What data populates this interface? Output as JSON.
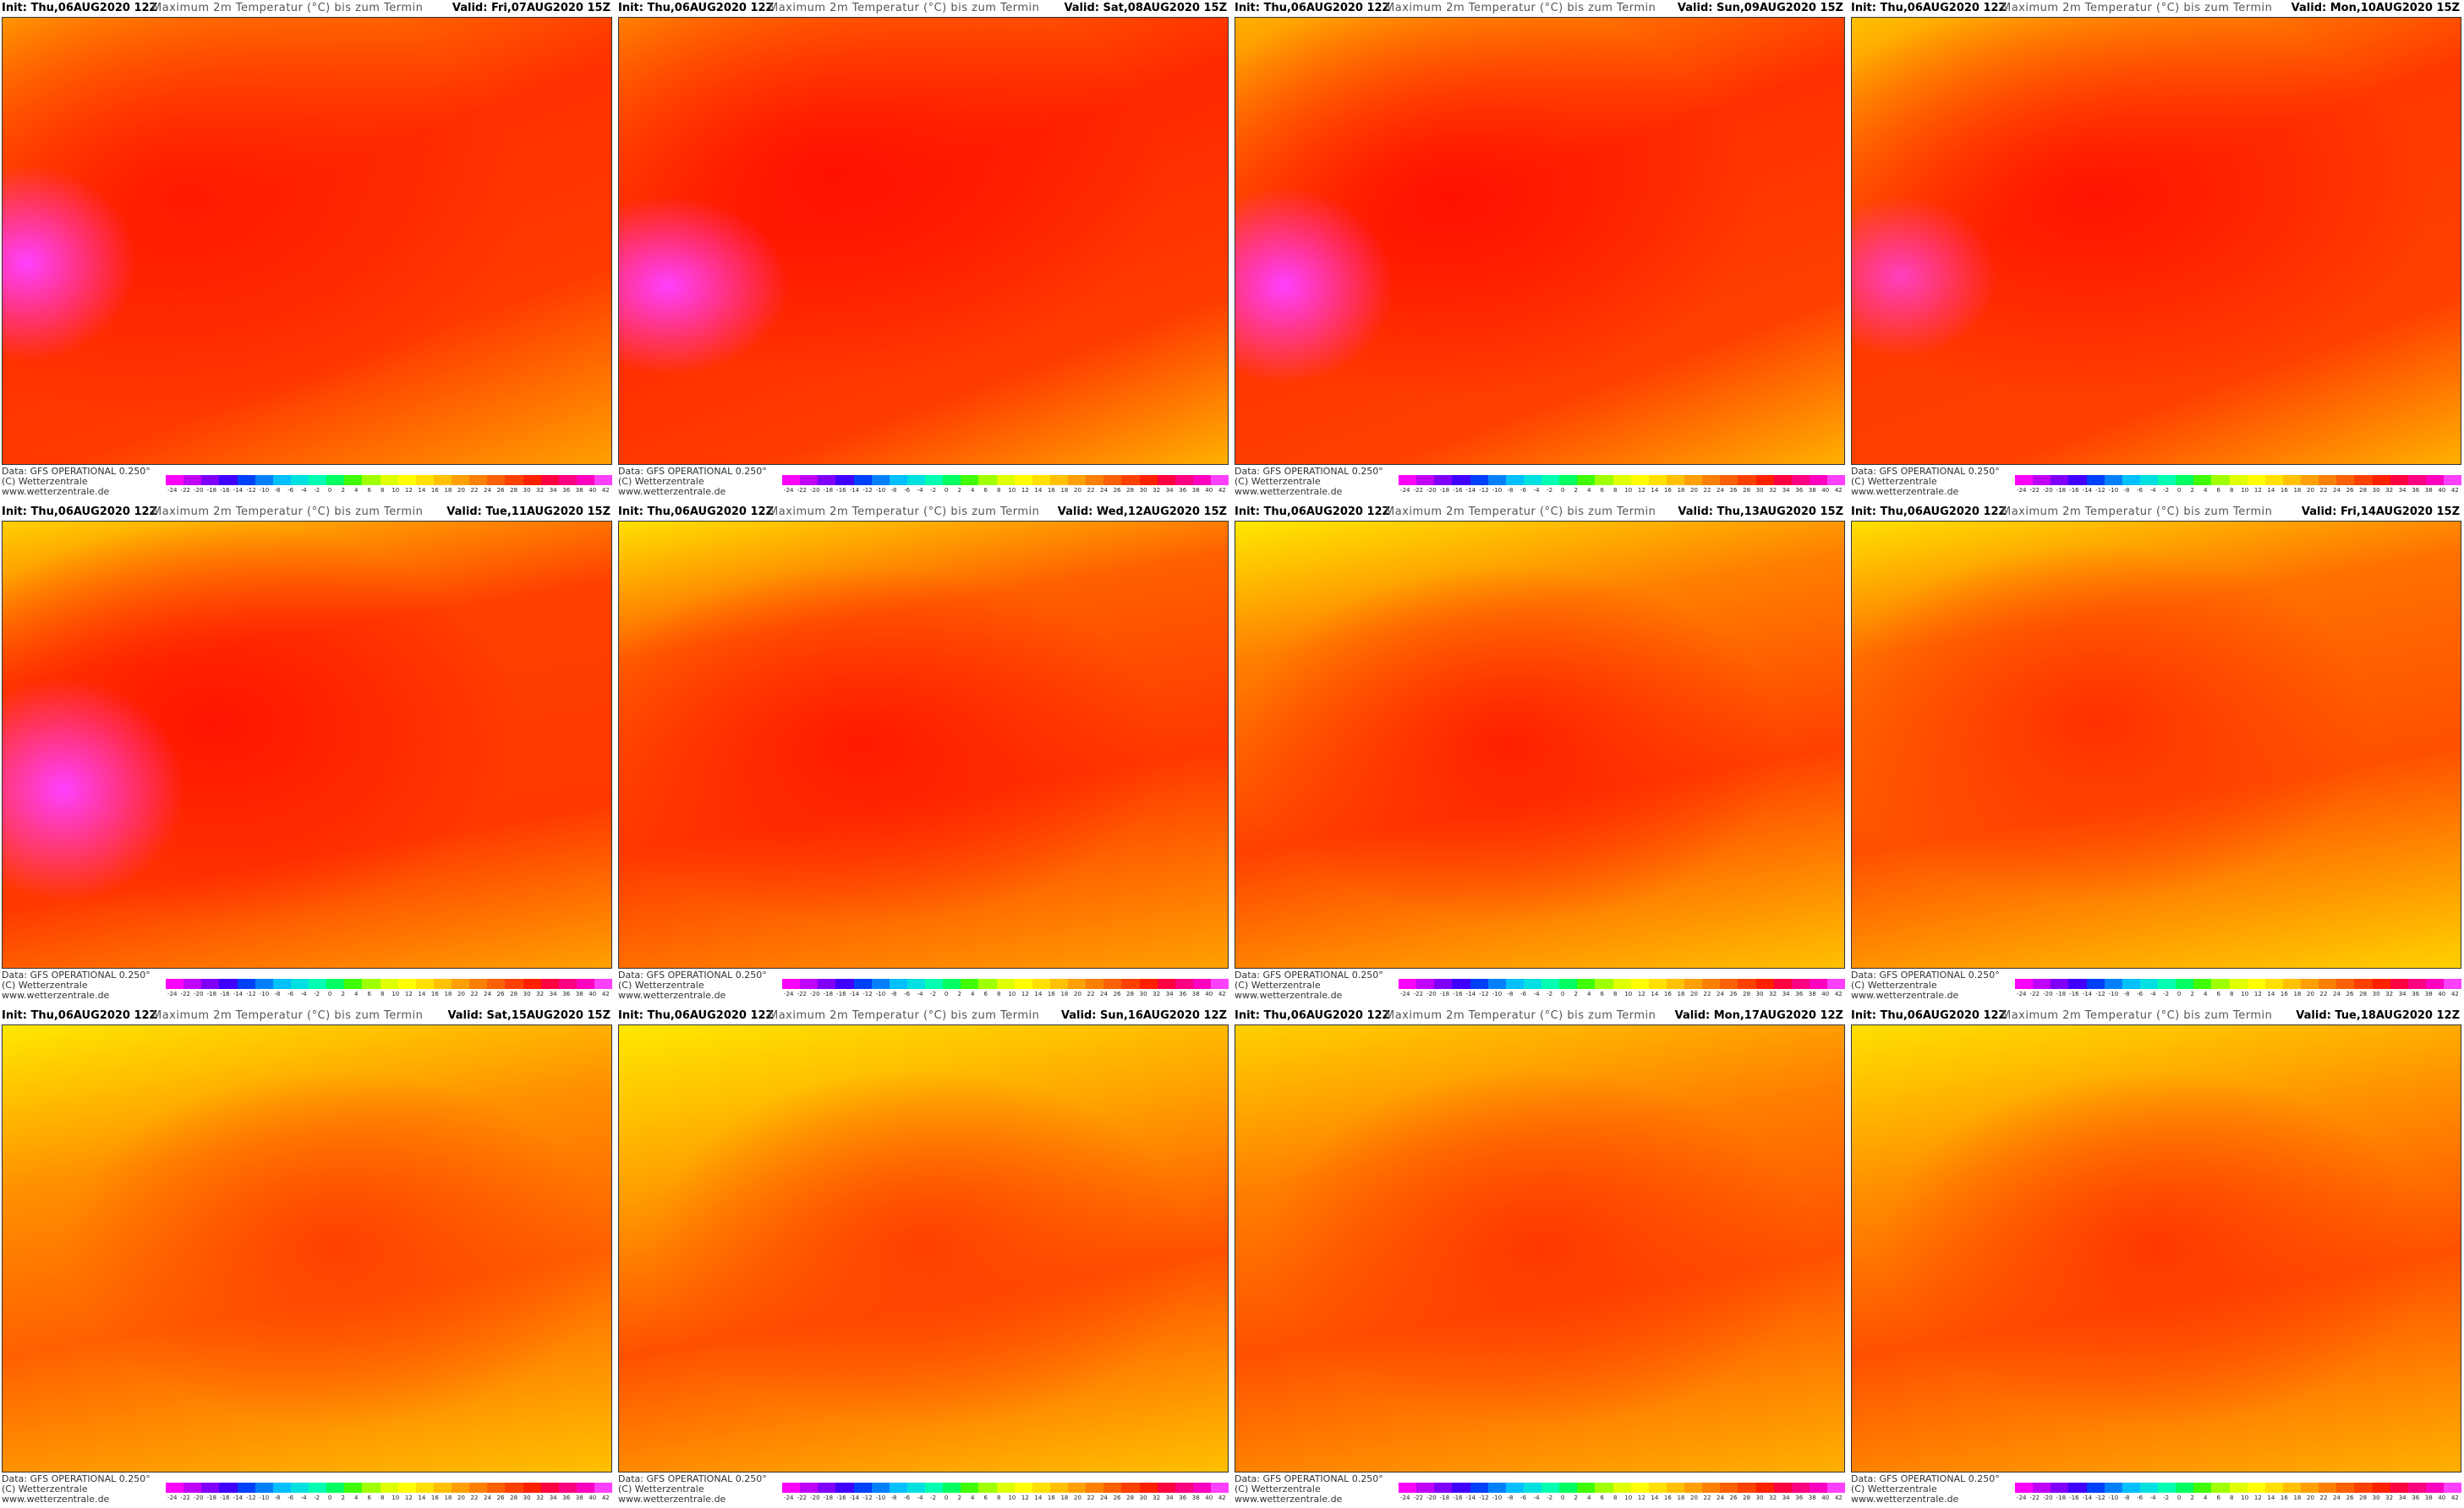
{
  "panels": [
    {
      "init": "Init: Thu,06AUG2020 12Z",
      "title": "Maximum 2m Temperatur (°C) bis zum Termin",
      "valid": "Valid: Fri,07AUG2020 15Z",
      "source": "Data: GFS OPERATIONAL 0.250°",
      "copyright": "(C) Wetterzentrale",
      "url": "www.wetterzentrale.de"
    },
    {
      "init": "Init: Thu,06AUG2020 12Z",
      "title": "Maximum 2m Temperatur (°C) bis zum Termin",
      "valid": "Valid: Sat,08AUG2020 15Z",
      "source": "Data: GFS OPERATIONAL 0.250°",
      "copyright": "(C) Wetterzentrale",
      "url": "www.wetterzentrale.de"
    },
    {
      "init": "Init: Thu,06AUG2020 12Z",
      "title": "Maximum 2m Temperatur (°C) bis zum Termin",
      "valid": "Valid: Sun,09AUG2020 15Z",
      "source": "Data: GFS OPERATIONAL 0.250°",
      "copyright": "(C) Wetterzentrale",
      "url": "www.wetterzentrale.de"
    },
    {
      "init": "Init: Thu,06AUG2020 12Z",
      "title": "Maximum 2m Temperatur (°C) bis zum Termin",
      "valid": "Valid: Mon,10AUG2020 15Z",
      "source": "Data: GFS OPERATIONAL 0.250°",
      "copyright": "(C) Wetterzentrale",
      "url": "www.wetterzentrale.de"
    },
    {
      "init": "Init: Thu,06AUG2020 12Z",
      "title": "Maximum 2m Temperatur (°C) bis zum Termin",
      "valid": "Valid: Tue,11AUG2020 15Z",
      "source": "Data: GFS OPERATIONAL 0.250°",
      "copyright": "(C) Wetterzentrale",
      "url": "www.wetterzentrale.de"
    },
    {
      "init": "Init: Thu,06AUG2020 12Z",
      "title": "Maximum 2m Temperatur (°C) bis zum Termin",
      "valid": "Valid: Wed,12AUG2020 15Z",
      "source": "Data: GFS OPERATIONAL 0.250°",
      "copyright": "(C) Wetterzentrale",
      "url": "www.wetterzentrale.de"
    },
    {
      "init": "Init: Thu,06AUG2020 12Z",
      "title": "Maximum 2m Temperatur (°C) bis zum Termin",
      "valid": "Valid: Thu,13AUG2020 15Z",
      "source": "Data: GFS OPERATIONAL 0.250°",
      "copyright": "(C) Wetterzentrale",
      "url": "www.wetterzentrale.de"
    },
    {
      "init": "Init: Thu,06AUG2020 12Z",
      "title": "Maximum 2m Temperatur (°C) bis zum Termin",
      "valid": "Valid: Fri,14AUG2020 15Z",
      "source": "Data: GFS OPERATIONAL 0.250°",
      "copyright": "(C) Wetterzentrale",
      "url": "www.wetterzentrale.de"
    },
    {
      "init": "Init: Thu,06AUG2020 12Z",
      "title": "Maximum 2m Temperatur (°C) bis zum Termin",
      "valid": "Valid: Sat,15AUG2020 15Z",
      "source": "Data: GFS OPERATIONAL 0.250°",
      "copyright": "(C) Wetterzentrale",
      "url": "www.wetterzentrale.de"
    },
    {
      "init": "Init: Thu,06AUG2020 12Z",
      "title": "Maximum 2m Temperatur (°C) bis zum Termin",
      "valid": "Valid: Sun,16AUG2020 12Z",
      "source": "Data: GFS OPERATIONAL 0.250°",
      "copyright": "(C) Wetterzentrale",
      "url": "www.wetterzentrale.de"
    },
    {
      "init": "Init: Thu,06AUG2020 12Z",
      "title": "Maximum 2m Temperatur (°C) bis zum Termin",
      "valid": "Valid: Mon,17AUG2020 12Z",
      "source": "Data: GFS OPERATIONAL 0.250°",
      "copyright": "(C) Wetterzentrale",
      "url": "www.wetterzentrale.de"
    },
    {
      "init": "Init: Thu,06AUG2020 12Z",
      "title": "Maximum 2m Temperatur (°C) bis zum Termin",
      "valid": "Valid: Tue,18AUG2020 12Z",
      "source": "Data: GFS OPERATIONAL 0.250°",
      "copyright": "(C) Wetterzentrale",
      "url": "www.wetterzentrale.de"
    }
  ],
  "colorbar": {
    "ticks": [
      -24,
      -22,
      -20,
      -18,
      -16,
      -14,
      -12,
      -10,
      -8,
      -6,
      -4,
      -2,
      0,
      2,
      4,
      6,
      8,
      10,
      12,
      14,
      16,
      18,
      20,
      22,
      24,
      26,
      28,
      30,
      32,
      34,
      36,
      38,
      40,
      42
    ]
  }
}
